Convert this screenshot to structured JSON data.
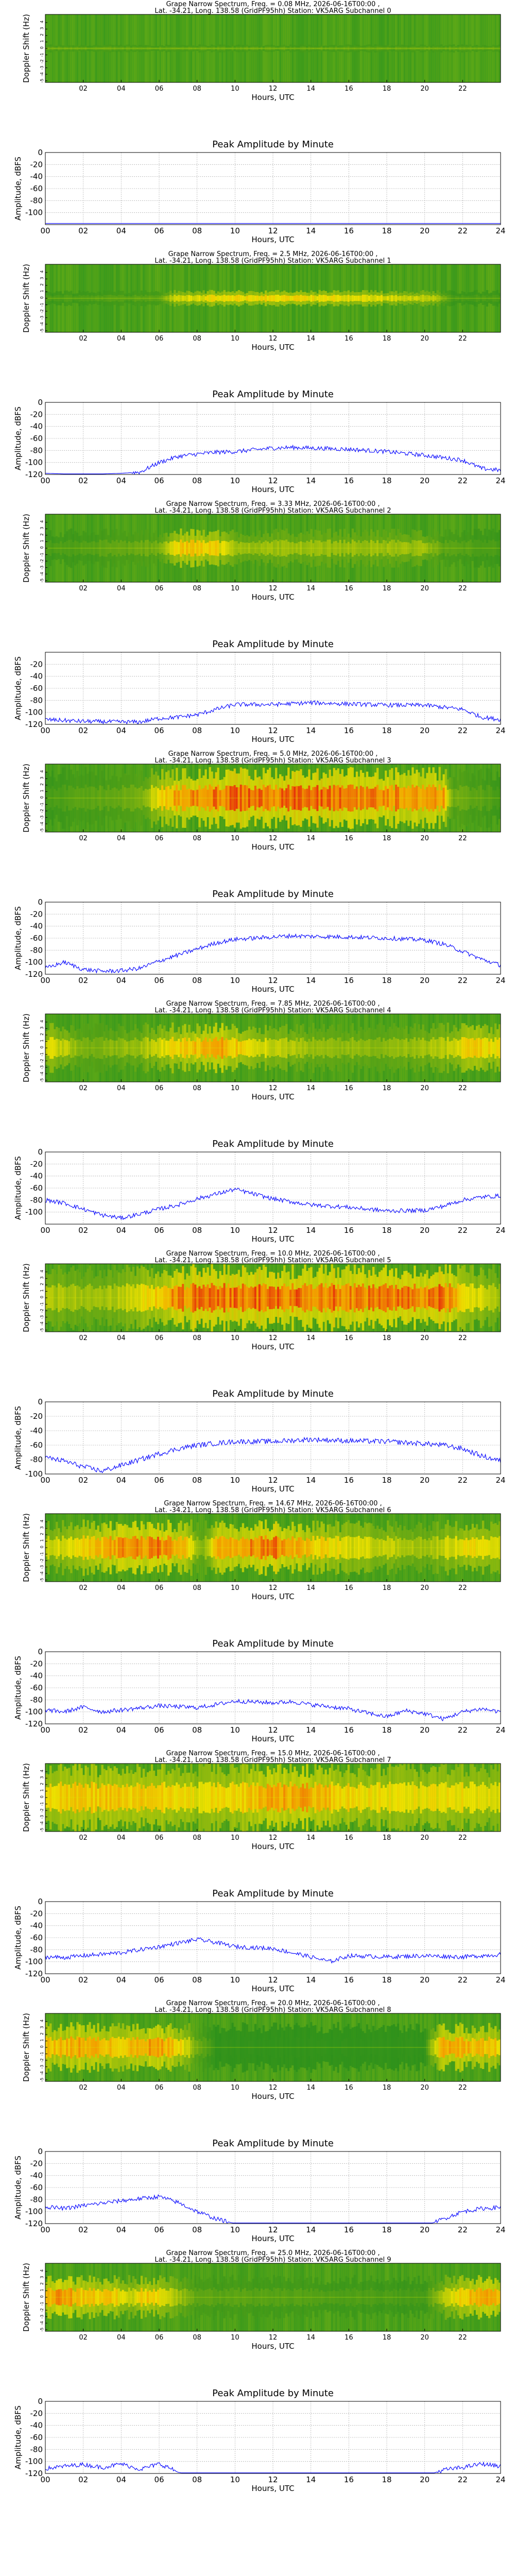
{
  "shared": {
    "spec_title_line2": "Lat. -34.21, Long. 138.58 (GridPF95hh) Station: VK5ARG",
    "spec_ylabel": "Doppler Shift (Hz)",
    "amp_title": "Peak Amplitude by Minute",
    "amp_ylabel": "Amplitude, dBFS",
    "xlabel": "Hours, UTC",
    "spec_xticks": [
      "02",
      "04",
      "06",
      "08",
      "10",
      "12",
      "14",
      "16",
      "18",
      "20",
      "22"
    ],
    "spec_yticks": [
      "4",
      "3",
      "2",
      "1",
      "0",
      "-1",
      "-2",
      "-3",
      "-4",
      "-5"
    ],
    "amp_xticks": [
      "00",
      "02",
      "04",
      "06",
      "08",
      "10",
      "12",
      "14",
      "16",
      "18",
      "20",
      "22",
      "24"
    ],
    "colors": {
      "line": "#0000ff",
      "spec_low": "#1e8a1e",
      "spec_mid": "#f2e300",
      "spec_high": "#e6200a"
    }
  },
  "chart_data": [
    {
      "type": "heatmap",
      "colormap": "green-yellow-red",
      "subchannel": "0",
      "title": "Grape Narrow Spectrum, Freq. = 0.08 MHz, 2026-06-16T00:00 ,",
      "subtitle": "Subchannel 0",
      "xlim": [
        0,
        24
      ],
      "ylim": [
        -5,
        5
      ],
      "intensity_profile": [
        [
          0,
          0.15
        ],
        [
          24,
          0.15
        ]
      ],
      "band_width_hz": 0.3,
      "amplitude": {
        "type": "line",
        "ylim": [
          -120,
          0
        ],
        "xlim": [
          0,
          24
        ],
        "yticks": [
          "0",
          "-20",
          "-40",
          "-60",
          "-80",
          "-100"
        ],
        "x": [
          0,
          4,
          8,
          12,
          16,
          20,
          24
        ],
        "y": [
          -118,
          -118,
          -118,
          -118,
          -118,
          -118,
          -118
        ]
      }
    },
    {
      "type": "heatmap",
      "colormap": "green-yellow-red",
      "subchannel": "1",
      "title": "Grape Narrow Spectrum, Freq. = 2.5 MHz, 2026-06-16T00:00 ,",
      "subtitle": "Subchannel 1",
      "xlim": [
        0,
        24
      ],
      "ylim": [
        -5,
        5
      ],
      "intensity_profile": [
        [
          0,
          0.1
        ],
        [
          6,
          0.15
        ],
        [
          7,
          0.45
        ],
        [
          9,
          0.5
        ],
        [
          12,
          0.55
        ],
        [
          15,
          0.5
        ],
        [
          18,
          0.45
        ],
        [
          20.5,
          0.35
        ],
        [
          21.5,
          0.1
        ],
        [
          24,
          0.1
        ]
      ],
      "band_width_hz": 0.6,
      "amplitude": {
        "type": "line",
        "ylim": [
          -120,
          0
        ],
        "xlim": [
          0,
          24
        ],
        "yticks": [
          "0",
          "-20",
          "-40",
          "-60",
          "-80",
          "-100",
          "-120"
        ],
        "x": [
          0,
          2,
          4,
          5,
          6,
          7,
          8,
          9,
          10,
          12,
          13,
          14,
          16,
          18,
          20,
          21,
          22,
          23,
          24
        ],
        "y": [
          -118,
          -120,
          -118,
          -116,
          -100,
          -90,
          -86,
          -83,
          -82,
          -76,
          -75,
          -76,
          -78,
          -82,
          -88,
          -92,
          -96,
          -110,
          -113
        ]
      }
    },
    {
      "type": "heatmap",
      "colormap": "green-yellow-red",
      "subchannel": "2",
      "title": "Grape Narrow Spectrum, Freq. = 3.33 MHz, 2026-06-16T00:00 ,",
      "subtitle": "Subchannel 2",
      "xlim": [
        0,
        24
      ],
      "ylim": [
        -5,
        5
      ],
      "intensity_profile": [
        [
          0,
          0.1
        ],
        [
          6,
          0.2
        ],
        [
          7,
          0.55
        ],
        [
          8,
          0.65
        ],
        [
          9,
          0.55
        ],
        [
          10,
          0.3
        ],
        [
          14,
          0.3
        ],
        [
          20,
          0.3
        ],
        [
          21,
          0.15
        ],
        [
          24,
          0.1
        ]
      ],
      "band_width_hz": 1.4,
      "amplitude": {
        "type": "line",
        "ylim": [
          -120,
          0
        ],
        "xlim": [
          0,
          24
        ],
        "yticks": [
          "-20",
          "-40",
          "-60",
          "-80",
          "-100",
          "-120"
        ],
        "x": [
          0,
          2,
          4,
          5,
          6,
          7,
          8,
          9,
          10,
          12,
          14,
          16,
          18,
          20,
          22,
          23,
          24
        ],
        "y": [
          -112,
          -115,
          -116,
          -116,
          -110,
          -108,
          -104,
          -95,
          -87,
          -87,
          -84,
          -86,
          -88,
          -88,
          -95,
          -108,
          -112
        ]
      }
    },
    {
      "type": "heatmap",
      "colormap": "green-yellow-red",
      "subchannel": "3",
      "title": "Grape Narrow Spectrum, Freq. = 5.0 MHz, 2026-06-16T00:00 ,",
      "subtitle": "Subchannel 3",
      "xlim": [
        0,
        24
      ],
      "ylim": [
        -5,
        5
      ],
      "intensity_profile": [
        [
          0,
          0.1
        ],
        [
          5,
          0.2
        ],
        [
          6,
          0.5
        ],
        [
          7,
          0.75
        ],
        [
          10,
          0.85
        ],
        [
          14,
          0.85
        ],
        [
          18,
          0.8
        ],
        [
          21,
          0.7
        ],
        [
          21.5,
          0.2
        ],
        [
          24,
          0.1
        ]
      ],
      "band_width_hz": 2.2,
      "amplitude": {
        "type": "line",
        "ylim": [
          -120,
          0
        ],
        "xlim": [
          0,
          24
        ],
        "yticks": [
          "0",
          "-20",
          "-40",
          "-60",
          "-80",
          "-100",
          "-120"
        ],
        "x": [
          0,
          1,
          2,
          3,
          4,
          5,
          6,
          7,
          8,
          9,
          10,
          12,
          13,
          14,
          16,
          18,
          20,
          21,
          22,
          23,
          24
        ],
        "y": [
          -110,
          -100,
          -112,
          -115,
          -114,
          -110,
          -98,
          -88,
          -78,
          -68,
          -62,
          -58,
          -56,
          -57,
          -58,
          -60,
          -63,
          -70,
          -82,
          -95,
          -105
        ]
      }
    },
    {
      "type": "heatmap",
      "colormap": "green-yellow-red",
      "subchannel": "4",
      "title": "Grape Narrow Spectrum, Freq. = 7.85 MHz, 2026-06-16T00:00 ,",
      "subtitle": "Subchannel 4",
      "xlim": [
        0,
        24
      ],
      "ylim": [
        -5,
        5
      ],
      "intensity_profile": [
        [
          0,
          0.45
        ],
        [
          1,
          0.4
        ],
        [
          2,
          0.2
        ],
        [
          5,
          0.3
        ],
        [
          7,
          0.55
        ],
        [
          9,
          0.75
        ],
        [
          10,
          0.6
        ],
        [
          12,
          0.4
        ],
        [
          14,
          0.3
        ],
        [
          18,
          0.25
        ],
        [
          21,
          0.35
        ],
        [
          22.5,
          0.6
        ],
        [
          24,
          0.5
        ]
      ],
      "band_width_hz": 1.8,
      "amplitude": {
        "type": "line",
        "ylim": [
          -120,
          0
        ],
        "xlim": [
          0,
          24
        ],
        "yticks": [
          "0",
          "-20",
          "-40",
          "-60",
          "-80",
          "-100"
        ],
        "x": [
          0,
          1,
          2,
          3,
          4,
          5,
          6,
          7,
          8,
          9,
          10,
          11,
          12,
          14,
          16,
          18,
          20,
          21,
          22,
          23,
          24
        ],
        "y": [
          -80,
          -85,
          -95,
          -105,
          -110,
          -103,
          -95,
          -88,
          -78,
          -70,
          -62,
          -70,
          -78,
          -88,
          -92,
          -98,
          -97,
          -90,
          -80,
          -75,
          -73
        ]
      }
    },
    {
      "type": "heatmap",
      "colormap": "green-yellow-red",
      "subchannel": "5",
      "title": "Grape Narrow Spectrum, Freq. = 10.0 MHz, 2026-06-16T00:00 ,",
      "subtitle": "Subchannel 5",
      "xlim": [
        0,
        24
      ],
      "ylim": [
        -5,
        5
      ],
      "intensity_profile": [
        [
          0,
          0.35
        ],
        [
          3,
          0.3
        ],
        [
          5,
          0.45
        ],
        [
          7,
          0.8
        ],
        [
          10,
          0.85
        ],
        [
          14,
          0.85
        ],
        [
          18,
          0.8
        ],
        [
          21,
          0.85
        ],
        [
          22,
          0.55
        ],
        [
          24,
          0.3
        ]
      ],
      "band_width_hz": 2.4,
      "amplitude": {
        "type": "line",
        "ylim": [
          -100,
          0
        ],
        "xlim": [
          0,
          24
        ],
        "yticks": [
          "0",
          "-20",
          "-40",
          "-60",
          "-80",
          "-100"
        ],
        "x": [
          0,
          1,
          2,
          3,
          4,
          5,
          6,
          7,
          8,
          10,
          12,
          14,
          16,
          18,
          20,
          21,
          22,
          23,
          24
        ],
        "y": [
          -77,
          -82,
          -90,
          -96,
          -88,
          -80,
          -72,
          -65,
          -60,
          -55,
          -55,
          -52,
          -54,
          -55,
          -58,
          -60,
          -65,
          -75,
          -82
        ]
      }
    },
    {
      "type": "heatmap",
      "colormap": "green-yellow-red",
      "subchannel": "6",
      "title": "Grape Narrow Spectrum, Freq. = 14.67 MHz, 2026-06-16T00:00 ,",
      "subtitle": "Subchannel 6",
      "xlim": [
        0,
        24
      ],
      "ylim": [
        -5,
        5
      ],
      "intensity_profile": [
        [
          0,
          0.4
        ],
        [
          2,
          0.55
        ],
        [
          4,
          0.75
        ],
        [
          6,
          0.8
        ],
        [
          7.5,
          0.6
        ],
        [
          8.3,
          0.2
        ],
        [
          9,
          0.7
        ],
        [
          12,
          0.85
        ],
        [
          14,
          0.6
        ],
        [
          16,
          0.45
        ],
        [
          18,
          0.4
        ],
        [
          20,
          0.3
        ],
        [
          22,
          0.5
        ],
        [
          23,
          0.55
        ],
        [
          24,
          0.4
        ]
      ],
      "band_width_hz": 2.0,
      "amplitude": {
        "type": "line",
        "ylim": [
          -120,
          0
        ],
        "xlim": [
          0,
          24
        ],
        "yticks": [
          "0",
          "-20",
          "-40",
          "-60",
          "-80",
          "-100",
          "-120"
        ],
        "x": [
          0,
          1,
          2,
          3,
          4,
          6,
          8,
          9,
          10,
          12,
          13,
          14,
          16,
          17,
          18,
          19,
          20,
          21,
          22,
          23,
          24
        ],
        "y": [
          -97,
          -100,
          -92,
          -100,
          -97,
          -90,
          -93,
          -88,
          -82,
          -85,
          -83,
          -88,
          -95,
          -102,
          -108,
          -98,
          -103,
          -112,
          -100,
          -95,
          -100
        ]
      }
    },
    {
      "type": "heatmap",
      "colormap": "green-yellow-red",
      "subchannel": "7",
      "title": "Grape Narrow Spectrum, Freq. = 15.0 MHz, 2026-06-16T00:00 ,",
      "subtitle": "Subchannel 7",
      "xlim": [
        0,
        24
      ],
      "ylim": [
        -5,
        5
      ],
      "intensity_profile": [
        [
          0,
          0.5
        ],
        [
          2,
          0.6
        ],
        [
          4,
          0.6
        ],
        [
          6,
          0.55
        ],
        [
          8,
          0.5
        ],
        [
          10,
          0.55
        ],
        [
          12,
          0.7
        ],
        [
          14,
          0.7
        ],
        [
          16,
          0.55
        ],
        [
          18,
          0.5
        ],
        [
          20,
          0.5
        ],
        [
          22,
          0.5
        ],
        [
          24,
          0.45
        ]
      ],
      "band_width_hz": 2.6,
      "amplitude": {
        "type": "line",
        "ylim": [
          -120,
          0
        ],
        "xlim": [
          0,
          24
        ],
        "yticks": [
          "0",
          "-20",
          "-40",
          "-60",
          "-80",
          "-100",
          "-120"
        ],
        "x": [
          0,
          1,
          2,
          4,
          6,
          8,
          9,
          10,
          12,
          13,
          14,
          15,
          16,
          18,
          20,
          22,
          24
        ],
        "y": [
          -92,
          -93,
          -90,
          -85,
          -75,
          -63,
          -68,
          -75,
          -78,
          -85,
          -92,
          -100,
          -90,
          -92,
          -90,
          -92,
          -88
        ]
      }
    },
    {
      "type": "heatmap",
      "colormap": "green-yellow-red",
      "subchannel": "8",
      "title": "Grape Narrow Spectrum, Freq. = 20.0 MHz, 2026-06-16T00:00 ,",
      "subtitle": "Subchannel 8",
      "xlim": [
        0,
        24
      ],
      "ylim": [
        -5,
        5
      ],
      "intensity_profile": [
        [
          0,
          0.6
        ],
        [
          2,
          0.7
        ],
        [
          4,
          0.6
        ],
        [
          6,
          0.75
        ],
        [
          7,
          0.6
        ],
        [
          8,
          0.2
        ],
        [
          9,
          0.05
        ],
        [
          20,
          0.05
        ],
        [
          20.5,
          0.4
        ],
        [
          21,
          0.7
        ],
        [
          23,
          0.65
        ],
        [
          24,
          0.55
        ]
      ],
      "band_width_hz": 1.8,
      "amplitude": {
        "type": "line",
        "ylim": [
          -120,
          0
        ],
        "xlim": [
          0,
          24
        ],
        "yticks": [
          "0",
          "-20",
          "-40",
          "-60",
          "-80",
          "-100",
          "-120"
        ],
        "x": [
          0,
          1,
          2,
          4,
          6,
          7,
          8,
          9,
          10,
          11,
          12,
          14,
          16,
          18,
          20,
          21,
          22,
          23,
          24
        ],
        "y": [
          -92,
          -95,
          -90,
          -82,
          -75,
          -85,
          -100,
          -112,
          -120,
          -124,
          -124,
          -124,
          -124,
          -124,
          -124,
          -112,
          -100,
          -95,
          -93
        ]
      }
    },
    {
      "type": "heatmap",
      "colormap": "green-yellow-red",
      "subchannel": "9",
      "title": "Grape Narrow Spectrum, Freq. = 25.0 MHz, 2026-06-16T00:00 ,",
      "subtitle": "Subchannel 9",
      "xlim": [
        0,
        24
      ],
      "ylim": [
        -5,
        5
      ],
      "intensity_profile": [
        [
          0,
          0.7
        ],
        [
          1,
          0.75
        ],
        [
          2,
          0.6
        ],
        [
          3.5,
          0.6
        ],
        [
          4.5,
          0.4
        ],
        [
          5.5,
          0.65
        ],
        [
          6.5,
          0.4
        ],
        [
          8,
          0.15
        ],
        [
          20,
          0.1
        ],
        [
          21,
          0.35
        ],
        [
          22,
          0.6
        ],
        [
          23,
          0.7
        ],
        [
          24,
          0.6
        ]
      ],
      "band_width_hz": 1.6,
      "amplitude": {
        "type": "line",
        "ylim": [
          -120,
          0
        ],
        "xlim": [
          0,
          24
        ],
        "yticks": [
          "0",
          "-20",
          "-40",
          "-60",
          "-80",
          "-100",
          "-120"
        ],
        "x": [
          0,
          1,
          2,
          3,
          4,
          5,
          6,
          6.5,
          7,
          8,
          9,
          10,
          12,
          16,
          20,
          21,
          22,
          23,
          24
        ],
        "y": [
          -112,
          -108,
          -105,
          -110,
          -104,
          -113,
          -104,
          -110,
          -118,
          -124,
          -124,
          -124,
          -124,
          -124,
          -124,
          -114,
          -110,
          -104,
          -108
        ]
      }
    }
  ]
}
